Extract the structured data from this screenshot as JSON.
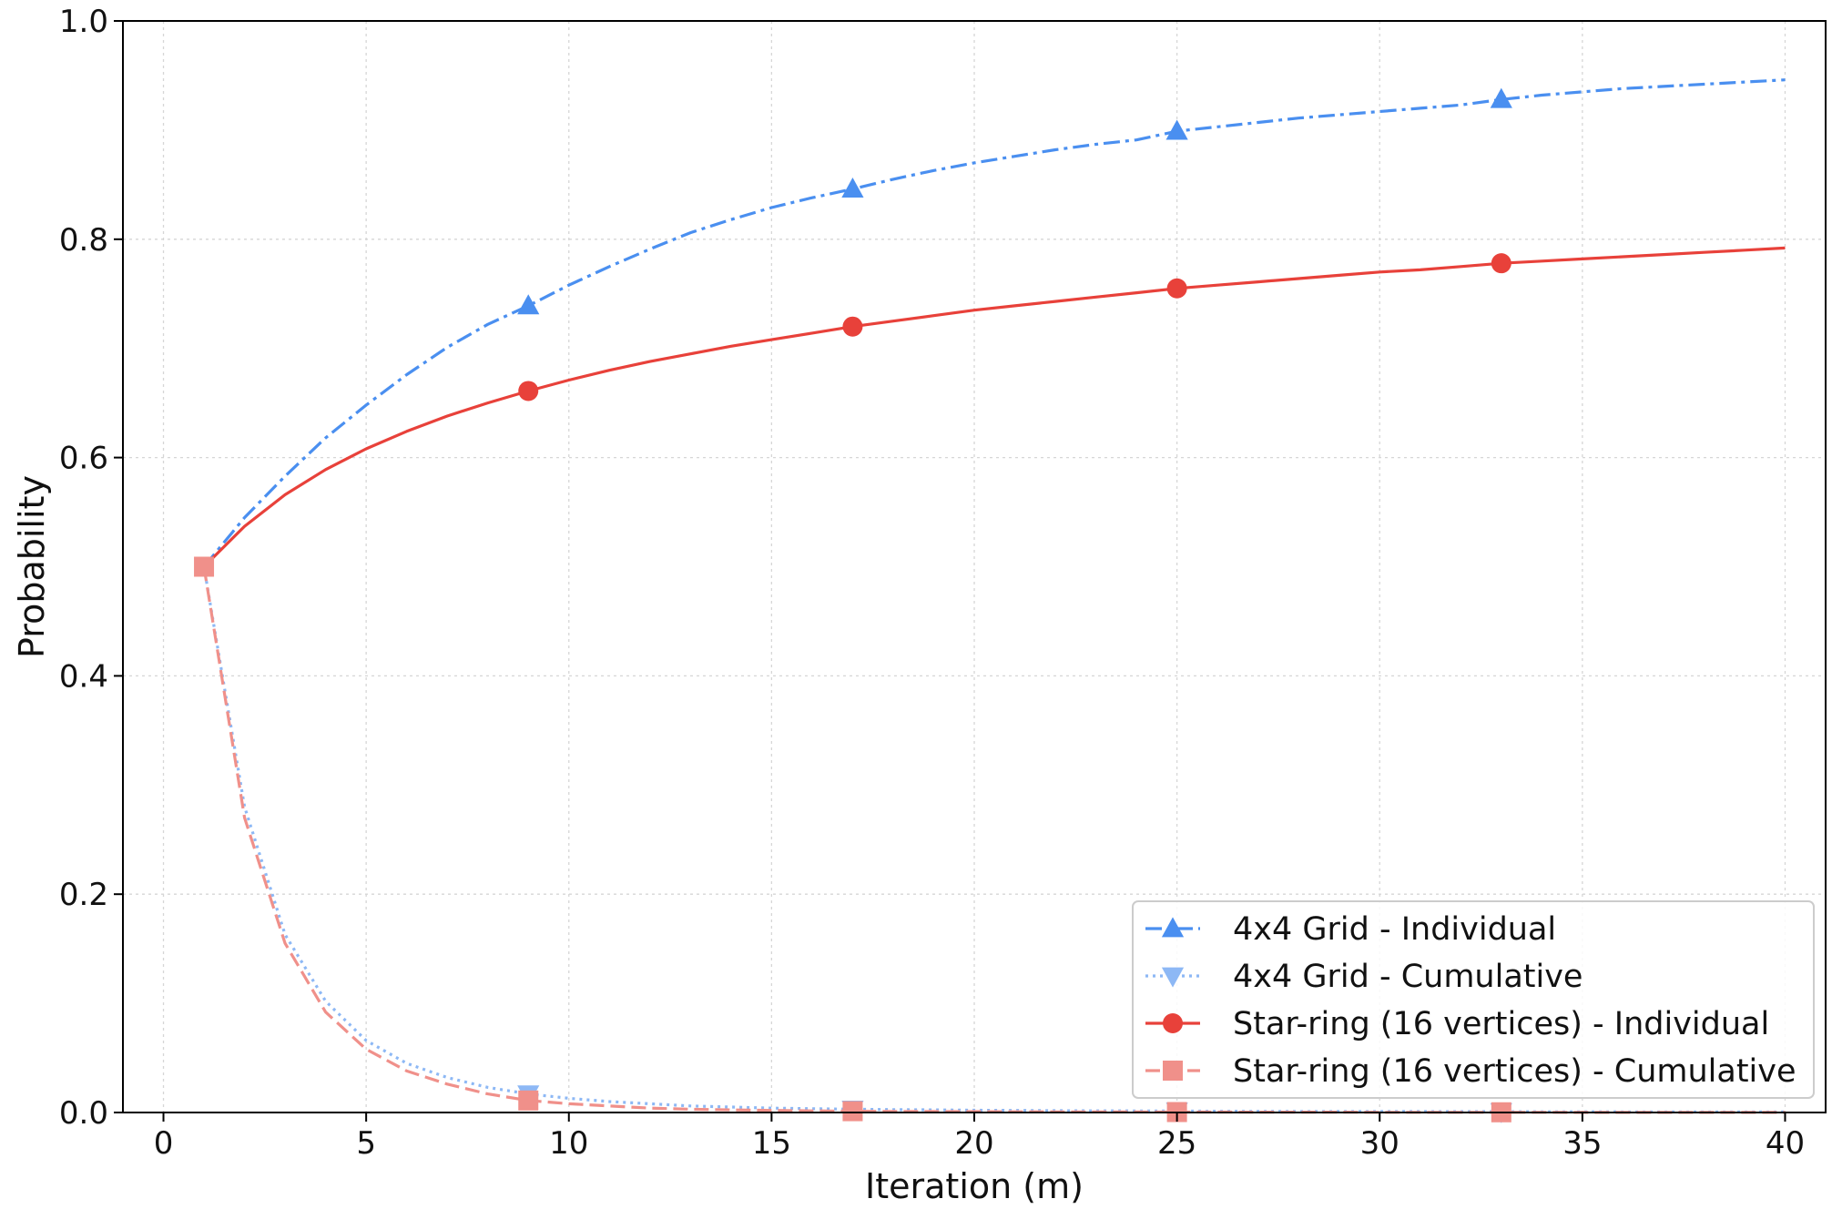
{
  "chart_data": {
    "type": "line",
    "title": "",
    "xlabel": "Iteration (m)",
    "ylabel": "Probability",
    "xlim": [
      -1,
      41
    ],
    "ylim": [
      0,
      1.0
    ],
    "xticks": [
      0,
      5,
      10,
      15,
      20,
      25,
      30,
      35,
      40
    ],
    "yticks": [
      0.0,
      0.2,
      0.4,
      0.6,
      0.8,
      1.0
    ],
    "xtick_labels": [
      "0",
      "5",
      "10",
      "15",
      "20",
      "25",
      "30",
      "35",
      "40"
    ],
    "ytick_labels": [
      "0.0",
      "0.2",
      "0.4",
      "0.6",
      "0.8",
      "1.0"
    ],
    "grid": true,
    "legend_position": "bottom-right",
    "series": [
      {
        "name": "4x4 Grid - Individual",
        "color": "#4a8ff0",
        "dash": "dash-dot",
        "marker": "triangle-up",
        "x": [
          1,
          2,
          3,
          4,
          5,
          6,
          7,
          8,
          9,
          10,
          11,
          12,
          13,
          14,
          15,
          16,
          17,
          18,
          19,
          20,
          21,
          22,
          23,
          24,
          25,
          26,
          27,
          28,
          29,
          30,
          31,
          32,
          33,
          34,
          35,
          36,
          37,
          38,
          39,
          40
        ],
        "y": [
          0.5,
          0.545,
          0.583,
          0.618,
          0.648,
          0.676,
          0.701,
          0.722,
          0.739,
          0.758,
          0.775,
          0.791,
          0.806,
          0.818,
          0.829,
          0.838,
          0.846,
          0.855,
          0.863,
          0.87,
          0.876,
          0.882,
          0.887,
          0.891,
          0.899,
          0.903,
          0.907,
          0.911,
          0.914,
          0.917,
          0.92,
          0.923,
          0.928,
          0.932,
          0.935,
          0.938,
          0.94,
          0.942,
          0.944,
          0.946
        ],
        "marker_x": [
          9,
          17,
          25,
          33
        ],
        "marker_y": [
          0.739,
          0.846,
          0.899,
          0.928
        ]
      },
      {
        "name": "4x4 Grid - Cumulative",
        "color": "#8db8f5",
        "dash": "dotted",
        "marker": "triangle-down",
        "x": [
          1,
          2,
          3,
          4,
          5,
          6,
          7,
          8,
          9,
          10,
          11,
          12,
          13,
          14,
          15,
          16,
          17,
          18,
          19,
          20,
          21,
          22,
          23,
          24,
          25,
          26,
          27,
          28,
          29,
          30,
          31,
          32,
          33,
          34,
          35,
          36,
          37,
          38,
          39,
          40
        ],
        "y": [
          0.5,
          0.28,
          0.163,
          0.102,
          0.066,
          0.045,
          0.032,
          0.023,
          0.017,
          0.013,
          0.01,
          0.008,
          0.006,
          0.005,
          0.004,
          0.0035,
          0.003,
          0.0027,
          0.0024,
          0.0021,
          0.0019,
          0.0017,
          0.0015,
          0.0014,
          0.0013,
          0.0012,
          0.0011,
          0.001,
          0.001,
          0.0009,
          0.0009,
          0.0008,
          0.0008,
          0.0007,
          0.0007,
          0.0006,
          0.0006,
          0.0006,
          0.0005,
          0.0005
        ],
        "marker_x": [
          9,
          17,
          25,
          33
        ],
        "marker_y": [
          0.017,
          0.003,
          0.0013,
          0.0008
        ]
      },
      {
        "name": "Star-ring (16 vertices) - Individual",
        "color": "#e8413a",
        "dash": "solid",
        "marker": "circle",
        "x": [
          1,
          2,
          3,
          4,
          5,
          6,
          7,
          8,
          9,
          10,
          11,
          12,
          13,
          14,
          15,
          16,
          17,
          18,
          19,
          20,
          21,
          22,
          23,
          24,
          25,
          26,
          27,
          28,
          29,
          30,
          31,
          32,
          33,
          34,
          35,
          36,
          37,
          38,
          39,
          40
        ],
        "y": [
          0.5,
          0.537,
          0.566,
          0.589,
          0.608,
          0.624,
          0.638,
          0.65,
          0.661,
          0.671,
          0.68,
          0.688,
          0.695,
          0.702,
          0.708,
          0.714,
          0.72,
          0.725,
          0.73,
          0.735,
          0.739,
          0.743,
          0.747,
          0.751,
          0.755,
          0.758,
          0.761,
          0.764,
          0.767,
          0.77,
          0.772,
          0.775,
          0.778,
          0.78,
          0.782,
          0.784,
          0.786,
          0.788,
          0.79,
          0.792
        ],
        "marker_x": [
          9,
          17,
          25,
          33
        ],
        "marker_y": [
          0.661,
          0.72,
          0.755,
          0.778
        ]
      },
      {
        "name": "Star-ring (16 vertices) - Cumulative",
        "color": "#f0908a",
        "dash": "dashed",
        "marker": "square",
        "x": [
          1,
          2,
          3,
          4,
          5,
          6,
          7,
          8,
          9,
          10,
          11,
          12,
          13,
          14,
          15,
          16,
          17,
          18,
          19,
          20,
          21,
          22,
          23,
          24,
          25,
          26,
          27,
          28,
          29,
          30,
          31,
          32,
          33,
          34,
          35,
          36,
          37,
          38,
          39,
          40
        ],
        "y": [
          0.5,
          0.27,
          0.155,
          0.092,
          0.058,
          0.038,
          0.026,
          0.017,
          0.011,
          0.008,
          0.006,
          0.004,
          0.003,
          0.0024,
          0.0019,
          0.0015,
          0.0012,
          0.001,
          0.0009,
          0.0008,
          0.0007,
          0.0006,
          0.0005,
          0.0005,
          0.0004,
          0.0004,
          0.0003,
          0.0003,
          0.0003,
          0.0002,
          0.0002,
          0.0002,
          0.0002,
          0.0002,
          0.0001,
          0.0001,
          0.0001,
          0.0001,
          0.0001,
          0.0001
        ],
        "marker_x": [
          1,
          9,
          17,
          25,
          33
        ],
        "marker_y": [
          0.5,
          0.011,
          0.0012,
          0.0004,
          0.0002
        ]
      }
    ]
  }
}
